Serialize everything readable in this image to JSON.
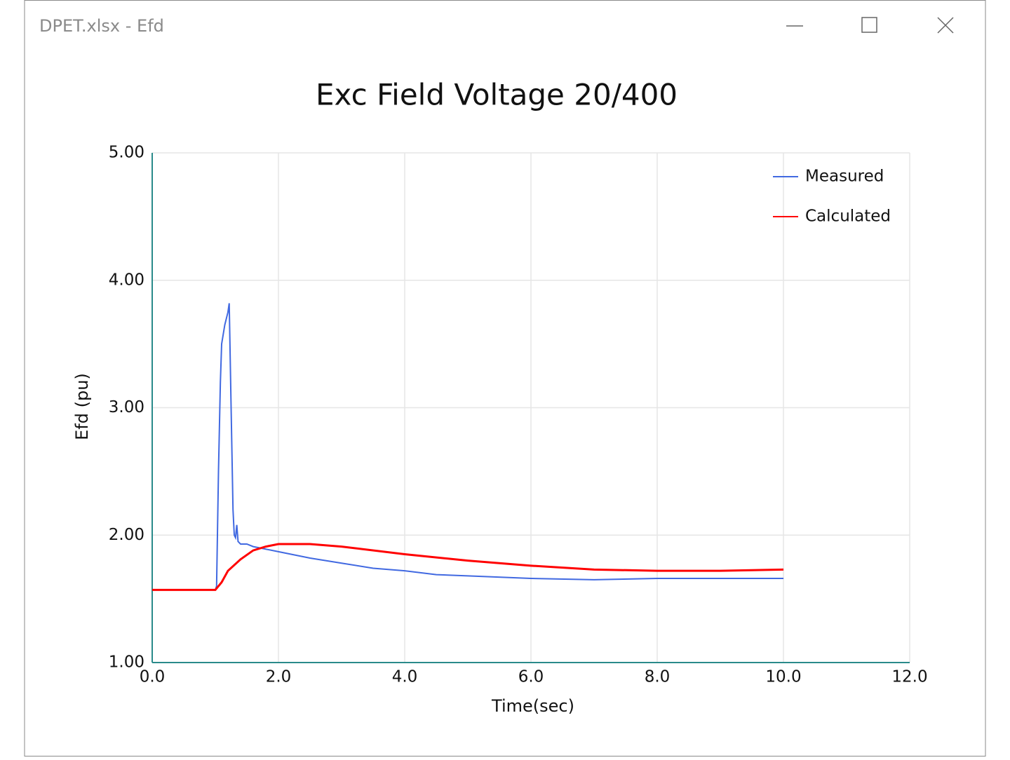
{
  "window": {
    "title": "DPET.xlsx - Efd"
  },
  "chart_data": {
    "type": "line",
    "title": "Exc Field Voltage 20/400",
    "x_label": "Time(sec)",
    "y_label": "Efd (pu)",
    "xlim": [
      0,
      12
    ],
    "xticks": [
      {
        "value": 0,
        "label": "0.0"
      },
      {
        "value": 2,
        "label": "2.0"
      },
      {
        "value": 4,
        "label": "4.0"
      },
      {
        "value": 6,
        "label": "6.0"
      },
      {
        "value": 8,
        "label": "8.0"
      },
      {
        "value": 10,
        "label": "10.0"
      },
      {
        "value": 12,
        "label": "12.0"
      }
    ],
    "ylim": [
      1,
      5
    ],
    "yticks": [
      {
        "value": 1,
        "label": "1.00"
      },
      {
        "value": 2,
        "label": "2.00"
      },
      {
        "value": 3,
        "label": "3.00"
      },
      {
        "value": 4,
        "label": "4.00"
      },
      {
        "value": 5,
        "label": "5.00"
      }
    ],
    "grid": true,
    "legend": "top-right",
    "series": [
      {
        "name": "Measured",
        "color": "#4169e1",
        "x": [
          0,
          1.0,
          1.02,
          1.05,
          1.08,
          1.1,
          1.15,
          1.2,
          1.22,
          1.25,
          1.28,
          1.3,
          1.32,
          1.34,
          1.36,
          1.4,
          1.5,
          1.6,
          1.8,
          2.0,
          2.5,
          3.0,
          3.5,
          4.0,
          4.5,
          5.0,
          6.0,
          7.0,
          8.0,
          8.5,
          9.0,
          10.0
        ],
        "values": [
          1.57,
          1.57,
          1.6,
          2.5,
          3.2,
          3.5,
          3.65,
          3.75,
          3.82,
          3.0,
          2.2,
          2.0,
          1.98,
          2.08,
          1.95,
          1.93,
          1.93,
          1.91,
          1.89,
          1.87,
          1.82,
          1.78,
          1.74,
          1.72,
          1.69,
          1.68,
          1.66,
          1.65,
          1.66,
          1.66,
          1.66,
          1.66
        ]
      },
      {
        "name": "Calculated",
        "color": "#ff0000",
        "x": [
          0,
          1.0,
          1.1,
          1.2,
          1.4,
          1.6,
          1.8,
          2.0,
          2.5,
          3.0,
          4.0,
          5.0,
          6.0,
          7.0,
          8.0,
          9.0,
          10.0
        ],
        "values": [
          1.57,
          1.57,
          1.63,
          1.72,
          1.81,
          1.88,
          1.91,
          1.93,
          1.93,
          1.91,
          1.85,
          1.8,
          1.76,
          1.73,
          1.72,
          1.72,
          1.73
        ]
      }
    ]
  }
}
